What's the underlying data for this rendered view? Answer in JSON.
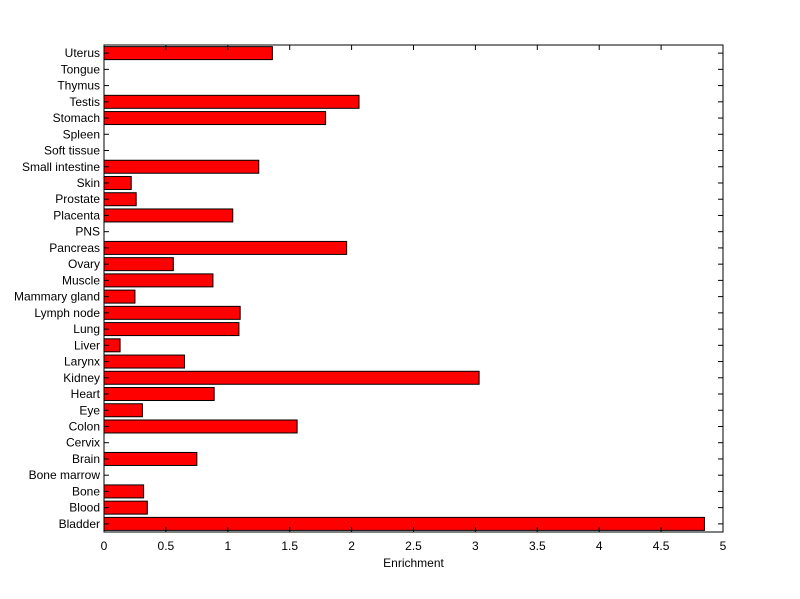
{
  "chart_data": {
    "type": "bar",
    "orientation": "horizontal",
    "xlabel": "Enrichment",
    "ylabel": "",
    "title": "",
    "xlim": [
      0,
      5
    ],
    "xticks": [
      0,
      0.5,
      1,
      1.5,
      2,
      2.5,
      3,
      3.5,
      4,
      4.5,
      5
    ],
    "xtick_labels": [
      "0",
      "0.5",
      "1",
      "1.5",
      "2",
      "2.5",
      "3",
      "3.5",
      "4",
      "4.5",
      "5"
    ],
    "grid": false,
    "bar_color": "#ff0000",
    "categories": [
      "Bladder",
      "Blood",
      "Bone",
      "Bone marrow",
      "Brain",
      "Cervix",
      "Colon",
      "Eye",
      "Heart",
      "Kidney",
      "Larynx",
      "Liver",
      "Lung",
      "Lymph node",
      "Mammary gland",
      "Muscle",
      "Ovary",
      "Pancreas",
      "PNS",
      "Placenta",
      "Prostate",
      "Skin",
      "Small intestine",
      "Soft tissue",
      "Spleen",
      "Stomach",
      "Testis",
      "Thymus",
      "Tongue",
      "Uterus"
    ],
    "values": [
      4.85,
      0.35,
      0.32,
      0,
      0.75,
      0,
      1.56,
      0.31,
      0.89,
      3.03,
      0.65,
      0.13,
      1.09,
      1.1,
      0.25,
      0.88,
      0.56,
      1.96,
      0,
      1.04,
      0.26,
      0.22,
      1.25,
      0,
      0,
      1.79,
      2.06,
      0,
      0,
      1.36
    ]
  }
}
